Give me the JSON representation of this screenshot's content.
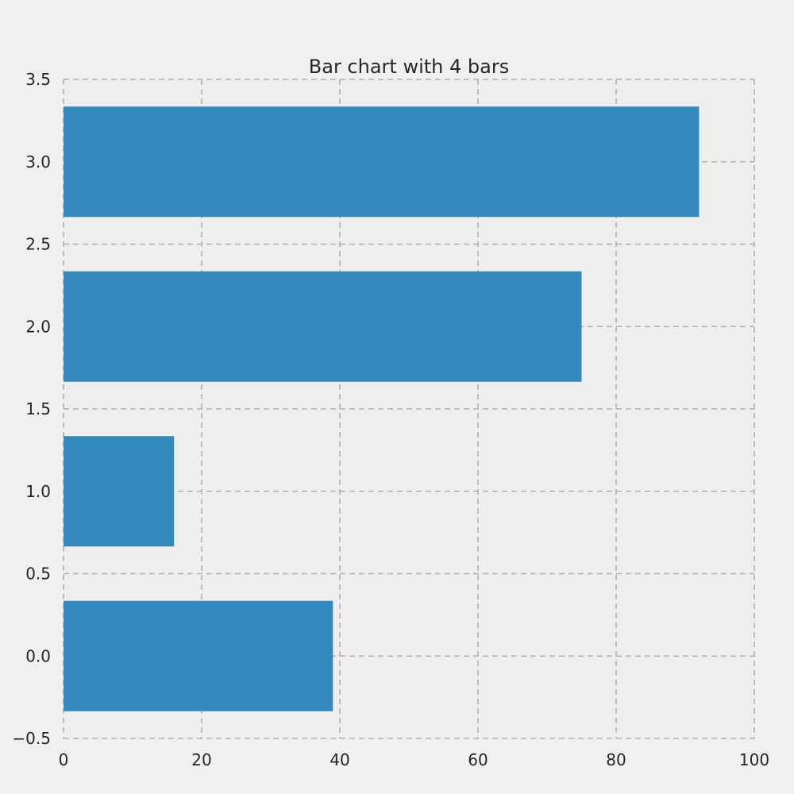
{
  "chart_data": {
    "type": "bar",
    "orientation": "horizontal",
    "title": "Bar chart with 4 bars",
    "xlabel": "",
    "ylabel": "",
    "categories": [
      0,
      1,
      2,
      3
    ],
    "values": [
      39,
      16,
      75,
      92
    ],
    "bar_height": 0.67,
    "xlim": [
      0,
      100
    ],
    "ylim": [
      -0.5,
      3.5
    ],
    "xticks": [
      "0",
      "20",
      "40",
      "60",
      "80",
      "100"
    ],
    "yticks": [
      "−0.5",
      "0.0",
      "0.5",
      "1.0",
      "1.5",
      "2.0",
      "2.5",
      "3.0",
      "3.5"
    ],
    "grid": true,
    "legend": "none",
    "colors": {
      "bar": "#348abd",
      "background": "#f0f0f0",
      "plot_background": "#eeeeee",
      "grid": "#b0b0b0",
      "text": "#262626"
    }
  }
}
